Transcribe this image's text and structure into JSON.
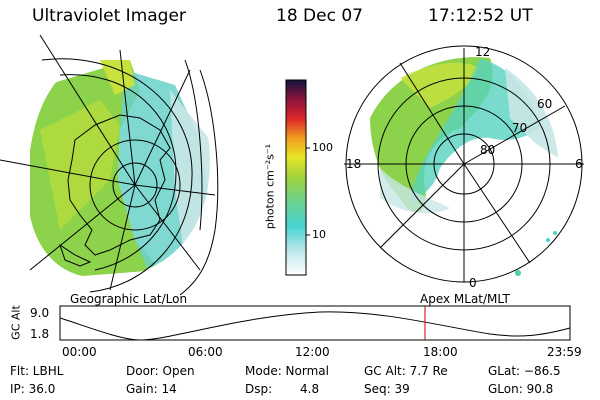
{
  "header": {
    "title": "Ultraviolet Imager",
    "date": "18 Dec 07",
    "time": "17:12:52 UT"
  },
  "colorbar": {
    "unit_label": "photon cm⁻²s⁻¹",
    "ticks": [
      "100",
      "10"
    ]
  },
  "polar_plot": {
    "noon_label": "12",
    "midnight_label": "0",
    "dawn_label": "6",
    "dusk_label": "18",
    "lat_labels": [
      "60",
      "70",
      "80"
    ]
  },
  "projection_labels": {
    "left": "Geographic Lat/Lon",
    "right": "Apex MLat/MLT"
  },
  "orbit_plot": {
    "ylabel": "GC Alt",
    "yticks": [
      "9.0",
      "1.8"
    ],
    "xticks": [
      "00:00",
      "06:00",
      "12:00",
      "18:00",
      "23:59"
    ],
    "current_time_marker_color": "#cc0000"
  },
  "info": {
    "filter": "Flt: LBHL",
    "door": "Door: Open",
    "mode": "Mode: Normal",
    "gc_alt": "GC Alt: 7.7 Re",
    "glat": "GLat: −86.5",
    "ip": "IP: 36.0",
    "gain": "Gain: 14",
    "dsp_label": "Dsp:",
    "dsp_value": "4.8",
    "seq": "Seq: 39",
    "glon": "GLon:  90.8"
  },
  "colors": {
    "aurora_main": "#8cd24a",
    "aurora_yellow": "#c8e13c",
    "aurora_cyan": "#48d2d2",
    "aurora_faint": "#b4dcdc"
  }
}
